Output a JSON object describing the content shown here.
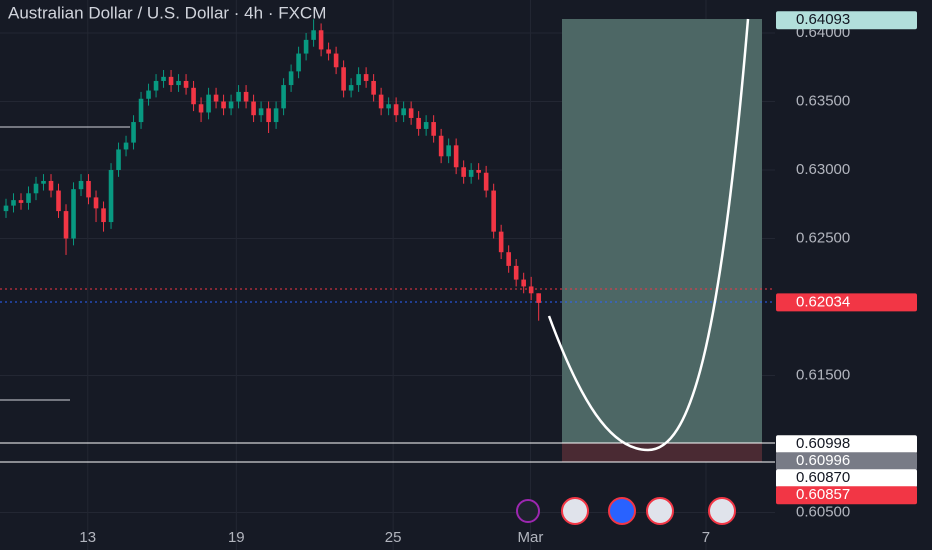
{
  "chart_data": {
    "type": "candlestick",
    "title": "Australian Dollar / U.S. Dollar · 4h · FXCM",
    "up_color": "#089981",
    "down_color": "#f23645",
    "open": [
      0.627,
      0.6274,
      0.6278,
      0.6276,
      0.6283,
      0.629,
      0.6292,
      0.6285,
      0.627,
      0.625,
      0.6286,
      0.6292,
      0.628,
      0.6272,
      0.6262,
      0.63,
      0.6315,
      0.632,
      0.6335,
      0.6352,
      0.6358,
      0.6365,
      0.6368,
      0.6362,
      0.6365,
      0.636,
      0.6348,
      0.6342,
      0.6355,
      0.635,
      0.6345,
      0.635,
      0.6357,
      0.635,
      0.634,
      0.6345,
      0.6335,
      0.6345,
      0.6362,
      0.6372,
      0.6385,
      0.6395,
      0.6402,
      0.6388,
      0.6385,
      0.6375,
      0.6358,
      0.6362,
      0.637,
      0.6365,
      0.6355,
      0.6345,
      0.6348,
      0.634,
      0.6345,
      0.6338,
      0.633,
      0.6335,
      0.6325,
      0.631,
      0.6318,
      0.6302,
      0.6295,
      0.63,
      0.6298,
      0.6285,
      0.6255,
      0.624,
      0.623,
      0.622,
      0.6215,
      0.621
    ],
    "high": [
      0.6279,
      0.6283,
      0.6283,
      0.6288,
      0.6295,
      0.6297,
      0.6297,
      0.629,
      0.6275,
      0.6291,
      0.6297,
      0.6297,
      0.6285,
      0.6277,
      0.6305,
      0.632,
      0.6325,
      0.634,
      0.6357,
      0.6363,
      0.637,
      0.6373,
      0.6373,
      0.637,
      0.637,
      0.6365,
      0.6353,
      0.636,
      0.636,
      0.6355,
      0.6355,
      0.6362,
      0.6362,
      0.6355,
      0.635,
      0.635,
      0.635,
      0.6367,
      0.6377,
      0.639,
      0.64,
      0.641,
      0.6407,
      0.6393,
      0.639,
      0.638,
      0.6367,
      0.6375,
      0.6375,
      0.637,
      0.636,
      0.6353,
      0.6353,
      0.635,
      0.635,
      0.6343,
      0.634,
      0.634,
      0.633,
      0.6323,
      0.6323,
      0.6307,
      0.6305,
      0.6305,
      0.6303,
      0.629,
      0.626,
      0.6245,
      0.6235,
      0.6225,
      0.6222,
      0.621
    ],
    "low": [
      0.6265,
      0.6269,
      0.6271,
      0.6271,
      0.6278,
      0.6285,
      0.628,
      0.6265,
      0.6238,
      0.6245,
      0.6281,
      0.6275,
      0.6262,
      0.6255,
      0.6257,
      0.6295,
      0.631,
      0.6315,
      0.633,
      0.6347,
      0.6353,
      0.636,
      0.6357,
      0.6357,
      0.6355,
      0.6343,
      0.6335,
      0.6337,
      0.6345,
      0.634,
      0.634,
      0.6345,
      0.6345,
      0.6335,
      0.6335,
      0.6327,
      0.633,
      0.634,
      0.6357,
      0.6367,
      0.638,
      0.639,
      0.6383,
      0.638,
      0.637,
      0.6353,
      0.6353,
      0.6357,
      0.636,
      0.635,
      0.634,
      0.634,
      0.6335,
      0.6335,
      0.6333,
      0.6325,
      0.6325,
      0.632,
      0.6305,
      0.6305,
      0.6297,
      0.629,
      0.629,
      0.6293,
      0.628,
      0.625,
      0.6235,
      0.6225,
      0.6215,
      0.621,
      0.6205,
      0.619
    ],
    "close": [
      0.6274,
      0.6278,
      0.6276,
      0.6283,
      0.629,
      0.6292,
      0.6285,
      0.627,
      0.625,
      0.6286,
      0.6292,
      0.628,
      0.6272,
      0.6262,
      0.63,
      0.6315,
      0.632,
      0.6335,
      0.6352,
      0.6358,
      0.6365,
      0.6368,
      0.6362,
      0.6365,
      0.636,
      0.6348,
      0.6342,
      0.6355,
      0.635,
      0.6345,
      0.635,
      0.6357,
      0.635,
      0.634,
      0.6345,
      0.6335,
      0.6345,
      0.6362,
      0.6372,
      0.6385,
      0.6395,
      0.6402,
      0.6388,
      0.6385,
      0.6375,
      0.6358,
      0.6362,
      0.637,
      0.6365,
      0.6355,
      0.6345,
      0.6348,
      0.634,
      0.6345,
      0.6338,
      0.633,
      0.6335,
      0.6325,
      0.631,
      0.6318,
      0.6302,
      0.6295,
      0.63,
      0.6298,
      0.6285,
      0.6255,
      0.624,
      0.623,
      0.622,
      0.6215,
      0.621,
      0.6203
    ],
    "xlim": [
      -0.8,
      102.5
    ],
    "xticks": [
      {
        "value": 10.9,
        "label": "13"
      },
      {
        "value": 30.7,
        "label": "19"
      },
      {
        "value": 51.6,
        "label": "25"
      },
      {
        "value": 69.9,
        "label": "Mar"
      },
      {
        "value": 93.3,
        "label": "7"
      }
    ],
    "ylim": [
      0.60226,
      0.64241
    ],
    "yticks": [
      {
        "value": 0.605,
        "label": "0.60500"
      },
      {
        "value": 0.615,
        "label": "0.61500"
      },
      {
        "value": 0.625,
        "label": "0.62500"
      },
      {
        "value": 0.63,
        "label": "0.63000"
      },
      {
        "value": 0.635,
        "label": "0.63500"
      },
      {
        "value": 0.64,
        "label": "0.64000"
      }
    ],
    "grid": true,
    "price_labels": [
      {
        "value": 0.64093,
        "label": "0.64093",
        "color": "#b2dfdb",
        "text_color": "#131722"
      },
      {
        "value": 0.62034,
        "label": "0.62034",
        "color": "#f23645",
        "text_color": "#ffffff"
      },
      {
        "value": 0.60998,
        "label": "0.60998",
        "color": "#ffffff",
        "text_color": "#131722"
      },
      {
        "value": 0.60996,
        "label": "0.60996",
        "color": "#787b86",
        "text_color": "#ffffff"
      },
      {
        "value": 0.6087,
        "label": "0.60870",
        "color": "#ffffff",
        "text_color": "#131722"
      },
      {
        "value": 0.60857,
        "label": "0.60857",
        "color": "#f23645",
        "text_color": "#ffffff"
      }
    ]
  }
}
